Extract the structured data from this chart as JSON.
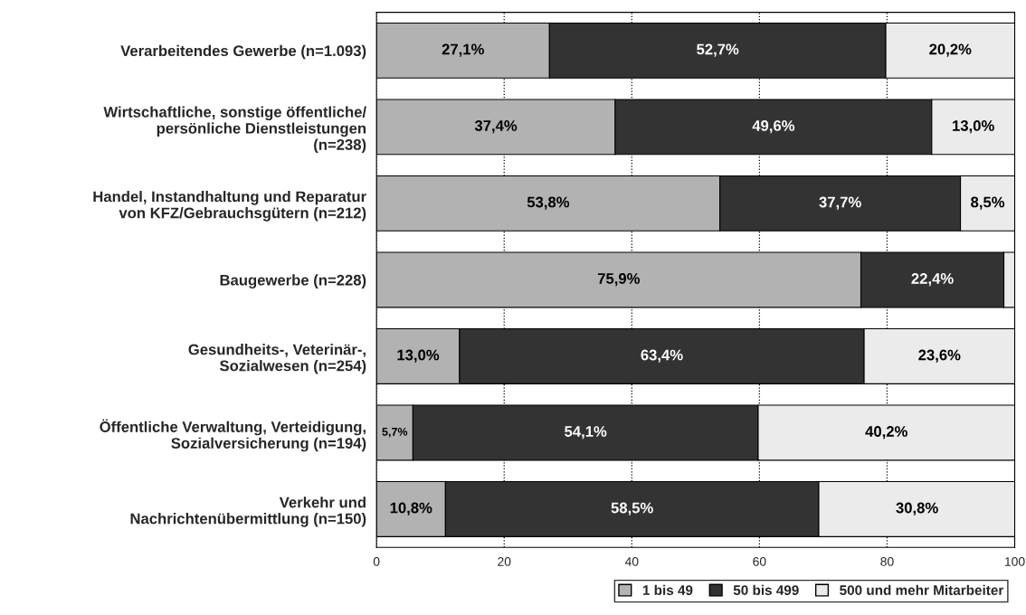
{
  "chart_data": {
    "type": "bar",
    "orientation": "horizontal",
    "stacked": true,
    "categories": [
      "Verarbeitendes Gewerbe (n=1.093)",
      "Wirtschaftliche, sonstige öffentliche/\npersönliche Dienstleistungen\n(n=238)",
      "Handel, Instandhaltung und Reparatur\nvon KFZ/Gebrauchsgütern (n=212)",
      "Baugewerbe (n=228)",
      "Gesundheits-, Veterinär-,\nSozialwesen (n=254)",
      "Öffentliche Verwaltung, Verteidigung,\nSozialversicherung (n=194)",
      "Verkehr und\nNachrichtenübermittlung (n=150)"
    ],
    "series": [
      {
        "name": "1 bis 49",
        "color": "#b2b2b2",
        "values": [
          27.1,
          37.4,
          53.8,
          75.9,
          13.0,
          5.7,
          10.8
        ],
        "value_labels": [
          "27,1%",
          "37,4%",
          "53,8%",
          "75,9%",
          "13,0%",
          "5,7%",
          "10,8%"
        ]
      },
      {
        "name": "50 bis 499",
        "color": "#333333",
        "values": [
          52.7,
          49.6,
          37.7,
          22.4,
          63.4,
          54.1,
          58.5
        ],
        "value_labels": [
          "52,7%",
          "49,6%",
          "37,7%",
          "22,4%",
          "63,4%",
          "54,1%",
          "58,5%"
        ]
      },
      {
        "name": "500 und mehr Mitarbeiter",
        "color": "#ebebeb",
        "values": [
          20.2,
          13.0,
          8.5,
          1.7,
          23.6,
          40.2,
          30.8
        ],
        "value_labels": [
          "20,2%",
          "13,0%",
          "8,5%",
          null,
          "23,6%",
          "40,2%",
          "30,8%"
        ]
      }
    ],
    "xlim": [
      0,
      100
    ],
    "xticks": [
      0,
      20,
      40,
      60,
      80,
      100
    ],
    "grid": "x",
    "legend": "bottom right"
  }
}
